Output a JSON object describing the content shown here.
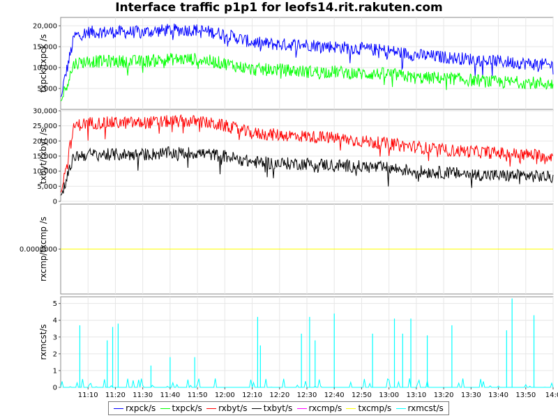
{
  "chart_data": {
    "type": "line",
    "title": "Interface traffic p1p1 for leofs14.rit.rakuten.com",
    "x_range": [
      "11:00",
      "14:00"
    ],
    "x_ticks": [
      "11:10",
      "11:20",
      "11:30",
      "11:40",
      "11:50",
      "12:00",
      "12:10",
      "12:20",
      "12:30",
      "12:40",
      "12:50",
      "13:00",
      "13:10",
      "13:20",
      "13:30",
      "13:40",
      "13:50",
      "14:00"
    ],
    "x_tick_labels": [
      "11:10",
      "11:20",
      "11:30",
      "11:40",
      "11:50",
      "12:00",
      "12:10",
      "12:20",
      "12:30",
      "12:40",
      "12:50",
      "13:00",
      "13:10",
      "13:20",
      "13:30",
      "13:40",
      "13:50",
      "14:0"
    ],
    "colors": {
      "rxpck/s": "#0000ff",
      "txpck/s": "#00ff00",
      "rxbyt/s": "#ff0000",
      "txbyt/s": "#000000",
      "rxcmp/s": "#ff00ff",
      "txcmp/s": "#ffff00",
      "rxmcst/s": "#00ffff"
    },
    "panels": [
      {
        "ylabel": "txpck/txpck /s",
        "ylim": [
          0,
          22000
        ],
        "yticks": [
          "5,000",
          "10,000",
          "15,000",
          "20,000"
        ],
        "ytick_values": [
          5000,
          10000,
          15000,
          20000
        ],
        "series": [
          {
            "name": "rxpck/s",
            "times": [
              "11:00",
              "11:05",
              "11:10",
              "11:20",
              "11:30",
              "11:40",
              "11:50",
              "12:00",
              "12:10",
              "12:20",
              "12:30",
              "12:40",
              "12:50",
              "13:00",
              "13:10",
              "13:20",
              "13:30",
              "13:40",
              "13:50",
              "14:00"
            ],
            "values": [
              3000,
              17500,
              18500,
              18500,
              18500,
              19000,
              19000,
              18000,
              16000,
              15500,
              15500,
              15000,
              14500,
              14000,
              13000,
              12500,
              12000,
              11500,
              11000,
              10500
            ]
          },
          {
            "name": "txpck/s",
            "times": [
              "11:00",
              "11:05",
              "11:10",
              "11:20",
              "11:30",
              "11:40",
              "11:50",
              "12:00",
              "12:10",
              "12:20",
              "12:30",
              "12:40",
              "12:50",
              "13:00",
              "13:10",
              "13:20",
              "13:30",
              "13:40",
              "13:50",
              "14:00"
            ],
            "values": [
              2000,
              11000,
              11500,
              11500,
              11500,
              12000,
              12000,
              11000,
              9500,
              9500,
              9000,
              9000,
              8500,
              8500,
              7500,
              7500,
              7000,
              6500,
              6500,
              6000
            ]
          }
        ]
      },
      {
        "ylabel": "txbyt/rxbyt /s",
        "ylim": [
          0,
          30000
        ],
        "yticks": [
          "0",
          "5,000",
          "10,000",
          "15,000",
          "20,000",
          "25,000",
          "30,000"
        ],
        "ytick_values": [
          0,
          5000,
          10000,
          15000,
          20000,
          25000,
          30000
        ],
        "series": [
          {
            "name": "rxbyt/s",
            "times": [
              "11:00",
              "11:05",
              "11:10",
              "11:20",
              "11:30",
              "11:40",
              "11:50",
              "12:00",
              "12:10",
              "12:20",
              "12:30",
              "12:40",
              "12:50",
              "13:00",
              "13:10",
              "13:20",
              "13:30",
              "13:40",
              "13:50",
              "14:00"
            ],
            "values": [
              3000,
              25000,
              26000,
              26000,
              26000,
              26500,
              26500,
              25000,
              22500,
              22000,
              21500,
              21000,
              20000,
              19000,
              18000,
              17000,
              16500,
              16000,
              15500,
              15000
            ]
          },
          {
            "name": "txbyt/s",
            "times": [
              "11:00",
              "11:05",
              "11:10",
              "11:20",
              "11:30",
              "11:40",
              "11:50",
              "12:00",
              "12:10",
              "12:20",
              "12:30",
              "12:40",
              "12:50",
              "13:00",
              "13:10",
              "13:20",
              "13:30",
              "13:40",
              "13:50",
              "14:00"
            ],
            "values": [
              2000,
              15000,
              15500,
              15500,
              15500,
              16000,
              16000,
              15000,
              13000,
              12500,
              12500,
              12000,
              11500,
              11000,
              10000,
              9500,
              9000,
              8500,
              8500,
              8000
            ]
          }
        ]
      },
      {
        "ylabel": "rxcmp/txcmp /s",
        "ylim": [
          -1,
          1
        ],
        "yticks": [
          "0.0000000"
        ],
        "ytick_values": [
          0
        ],
        "series": [
          {
            "name": "rxcmp/s",
            "times": [
              "11:00",
              "14:00"
            ],
            "values": [
              0,
              0
            ]
          },
          {
            "name": "txcmp/s",
            "times": [
              "11:00",
              "14:00"
            ],
            "values": [
              0,
              0
            ]
          }
        ]
      },
      {
        "ylabel": "rxmcst/s",
        "ylim": [
          0,
          5.4
        ],
        "yticks": [
          "0",
          "1",
          "2",
          "3",
          "4",
          "5"
        ],
        "ytick_values": [
          0,
          1,
          2,
          3,
          4,
          5
        ],
        "series": [
          {
            "name": "rxmcst/s",
            "times": [
              "11:07",
              "11:17",
              "11:19",
              "11:21",
              "11:33",
              "11:40",
              "11:49",
              "12:12",
              "12:13",
              "12:28",
              "12:31",
              "12:33",
              "12:40",
              "12:54",
              "13:02",
              "13:05",
              "13:08",
              "13:14",
              "13:23",
              "13:43",
              "13:45",
              "13:53"
            ],
            "values": [
              3.7,
              2.8,
              3.6,
              3.8,
              1.3,
              1.8,
              1.8,
              4.2,
              2.5,
              3.2,
              4.2,
              2.8,
              4.4,
              3.2,
              4.1,
              3.2,
              4.1,
              3.1,
              3.7,
              3.4,
              5.3,
              4.3
            ]
          }
        ]
      }
    ],
    "legend": [
      "rxpck/s",
      "txpck/s",
      "rxbyt/s",
      "txbyt/s",
      "rxcmp/s",
      "txcmp/s",
      "rxmcst/s"
    ],
    "legend_position": "bottom",
    "grid": true
  }
}
